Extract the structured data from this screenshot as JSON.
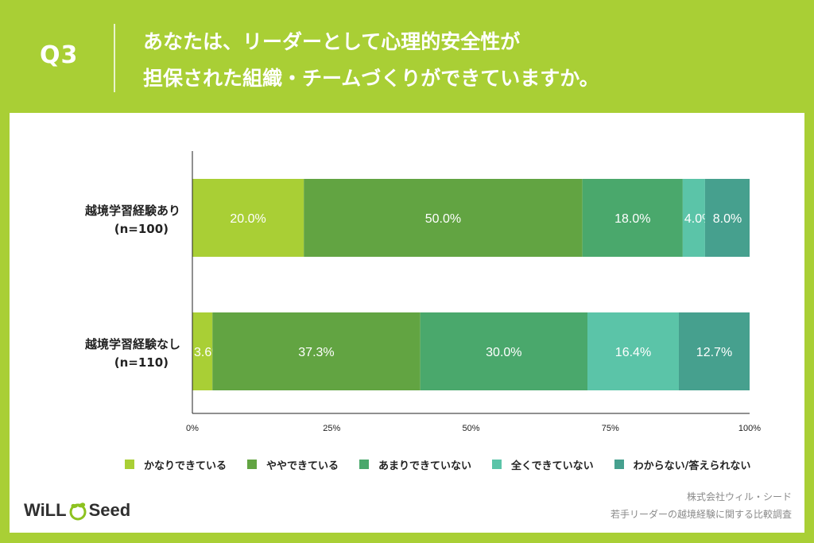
{
  "header": {
    "question_number": "Q3",
    "question_text_line1": "あなたは、リーダーとして心理的安全性が",
    "question_text_line2": "担保された組織・チームづくりができていますか。"
  },
  "colors": {
    "background": "#a9cf35",
    "series": [
      "#a9cf35",
      "#62a442",
      "#4aa86c",
      "#5bc4a8",
      "#46a08e"
    ]
  },
  "chart_data": {
    "type": "bar",
    "orientation": "horizontal",
    "stacked": true,
    "percent": true,
    "categories": [
      {
        "name": "越境学習経験あり",
        "count": "(n=100)"
      },
      {
        "name": "越境学習経験なし",
        "count": "(n=110)"
      }
    ],
    "series": [
      {
        "name": "かなりできている",
        "values": [
          20.0,
          3.6
        ]
      },
      {
        "name": "ややできている",
        "values": [
          50.0,
          37.3
        ]
      },
      {
        "name": "あまりできていない",
        "values": [
          18.0,
          30.0
        ]
      },
      {
        "name": "全くできていない",
        "values": [
          4.0,
          16.4
        ]
      },
      {
        "name": "わからない/答えられない",
        "values": [
          8.0,
          12.7
        ]
      }
    ],
    "data_labels": [
      [
        "20.0%",
        "50.0%",
        "18.0%",
        "4.0%",
        "8.0%"
      ],
      [
        "3.6%",
        "37.3%",
        "30.0%",
        "16.4%",
        "12.7%"
      ]
    ],
    "xlim": [
      0,
      100
    ],
    "x_ticks": [
      0,
      25,
      50,
      75,
      100
    ],
    "x_tick_labels": [
      "0%",
      "25%",
      "50%",
      "75%",
      "100%"
    ],
    "legend_position": "bottom"
  },
  "legend": {
    "items": [
      "かなりできている",
      "ややできている",
      "あまりできていない",
      "全くできていない",
      "わからない/答えられない"
    ]
  },
  "logo": {
    "part1": "WiLL",
    "part2": "Seed"
  },
  "credit": {
    "company": "株式会社ウィル・シード",
    "survey": "若手リーダーの越境経験に関する比較調査"
  }
}
